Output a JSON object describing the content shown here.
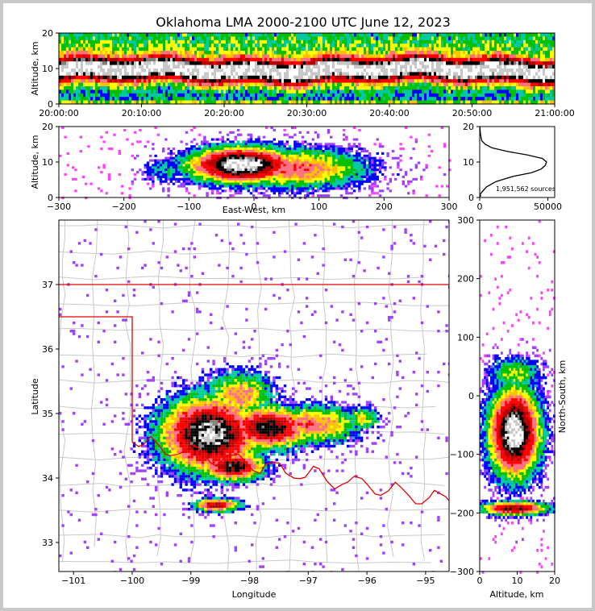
{
  "chart_data": [
    {
      "panel": "time-altitude",
      "type": "heatmap",
      "title": "Oklahoma LMA 2000-2100 UTC June 12, 2023",
      "ylabel": "Altitude, km",
      "xlabel": "",
      "ylim": [
        0,
        20
      ],
      "y_ticks": [
        "0",
        "10",
        "20"
      ],
      "x_ticks": [
        "20:00:00",
        "20:10:00",
        "20:20:00",
        "20:30:00",
        "20:40:00",
        "20:50:00",
        "21:00:00"
      ],
      "description_values": {
        "core_altitude_km": 10,
        "top_altitude_km": 20
      }
    },
    {
      "panel": "east-west-altitude",
      "type": "heatmap",
      "xlabel": "East-West, km",
      "ylabel": "Altitude, km",
      "xlim": [
        -300,
        300
      ],
      "ylim": [
        0,
        20
      ],
      "x_ticks": [
        "−300",
        "−200",
        "−100",
        "0",
        "100",
        "200",
        "300"
      ],
      "y_ticks": [
        "0",
        "10",
        "20"
      ]
    },
    {
      "panel": "altitude-histogram",
      "type": "line",
      "xlim": [
        0,
        55000
      ],
      "ylim": [
        0,
        20
      ],
      "x_ticks": [
        "0",
        "50000"
      ],
      "y_ticks": [
        "0",
        "10",
        "20"
      ],
      "annotation": "1,951,562 sources",
      "x": [
        800,
        300,
        1500,
        5000,
        12000,
        25000,
        38000,
        45000,
        48000,
        49000,
        46000,
        35000,
        20000,
        9000,
        4000,
        1500,
        500,
        100
      ],
      "y": [
        0.3,
        0.8,
        1.5,
        3,
        4.5,
        6,
        7,
        8,
        9,
        10,
        11,
        12,
        13,
        14,
        15,
        16,
        18,
        20
      ]
    },
    {
      "panel": "plan-view",
      "type": "heatmap",
      "xlabel": "Longitude",
      "ylabel": "Latitude",
      "xlim": [
        -101.25,
        -94.6
      ],
      "ylim": [
        32.55,
        38.0
      ],
      "x_ticks": [
        "−101",
        "−100",
        "−99",
        "−98",
        "−97",
        "−96",
        "−95"
      ],
      "y_ticks": [
        "33",
        "34",
        "35",
        "36",
        "37"
      ],
      "boundary_color": "#e00000",
      "county_color": "#c8c8c8"
    },
    {
      "panel": "north-south-altitude",
      "type": "heatmap",
      "xlabel": "Altitude, km",
      "ylabel": "North-South, km",
      "xlim": [
        0,
        20
      ],
      "ylim": [
        -300,
        300
      ],
      "x_ticks": [
        "0",
        "10",
        "20"
      ],
      "y_ticks": [
        "−300",
        "−200",
        "−100",
        "0",
        "100",
        "200",
        "300"
      ]
    }
  ],
  "colors": {
    "scale": [
      "#ffffff",
      "#c8c8c8",
      "#808080",
      "#000000",
      "#b40000",
      "#ff0000",
      "#ff7080",
      "#ffc000",
      "#ffff00",
      "#00c000",
      "#00c8a0",
      "#0000ff",
      "#a040ff",
      "#ff40ff"
    ],
    "axes": "#000000",
    "grid": "#d8d8d8"
  }
}
